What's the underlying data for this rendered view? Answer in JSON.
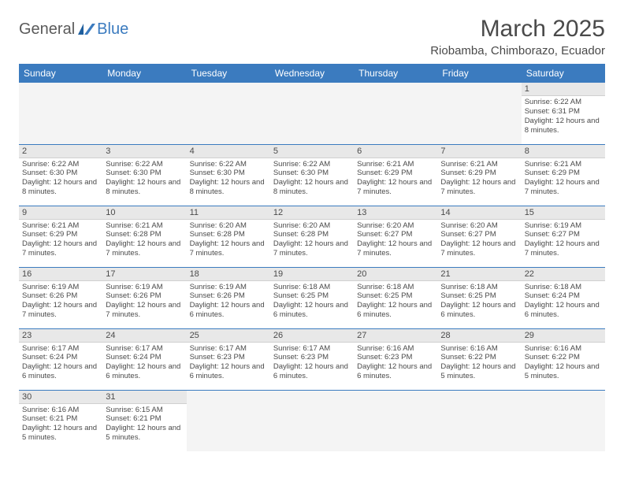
{
  "logo": {
    "part1": "General",
    "part2": "Blue"
  },
  "title": "March 2025",
  "location": "Riobamba, Chimborazo, Ecuador",
  "colors": {
    "header_bg": "#3b7bbf",
    "header_fg": "#ffffff",
    "daynum_bg": "#e8e8e8",
    "border": "#3b7bbf",
    "text": "#4a4a4a"
  },
  "day_names": [
    "Sunday",
    "Monday",
    "Tuesday",
    "Wednesday",
    "Thursday",
    "Friday",
    "Saturday"
  ],
  "weeks": [
    [
      null,
      null,
      null,
      null,
      null,
      null,
      {
        "n": "1",
        "sr": "6:22 AM",
        "ss": "6:31 PM",
        "dl": "12 hours and 8 minutes."
      }
    ],
    [
      {
        "n": "2",
        "sr": "6:22 AM",
        "ss": "6:30 PM",
        "dl": "12 hours and 8 minutes."
      },
      {
        "n": "3",
        "sr": "6:22 AM",
        "ss": "6:30 PM",
        "dl": "12 hours and 8 minutes."
      },
      {
        "n": "4",
        "sr": "6:22 AM",
        "ss": "6:30 PM",
        "dl": "12 hours and 8 minutes."
      },
      {
        "n": "5",
        "sr": "6:22 AM",
        "ss": "6:30 PM",
        "dl": "12 hours and 8 minutes."
      },
      {
        "n": "6",
        "sr": "6:21 AM",
        "ss": "6:29 PM",
        "dl": "12 hours and 7 minutes."
      },
      {
        "n": "7",
        "sr": "6:21 AM",
        "ss": "6:29 PM",
        "dl": "12 hours and 7 minutes."
      },
      {
        "n": "8",
        "sr": "6:21 AM",
        "ss": "6:29 PM",
        "dl": "12 hours and 7 minutes."
      }
    ],
    [
      {
        "n": "9",
        "sr": "6:21 AM",
        "ss": "6:29 PM",
        "dl": "12 hours and 7 minutes."
      },
      {
        "n": "10",
        "sr": "6:21 AM",
        "ss": "6:28 PM",
        "dl": "12 hours and 7 minutes."
      },
      {
        "n": "11",
        "sr": "6:20 AM",
        "ss": "6:28 PM",
        "dl": "12 hours and 7 minutes."
      },
      {
        "n": "12",
        "sr": "6:20 AM",
        "ss": "6:28 PM",
        "dl": "12 hours and 7 minutes."
      },
      {
        "n": "13",
        "sr": "6:20 AM",
        "ss": "6:27 PM",
        "dl": "12 hours and 7 minutes."
      },
      {
        "n": "14",
        "sr": "6:20 AM",
        "ss": "6:27 PM",
        "dl": "12 hours and 7 minutes."
      },
      {
        "n": "15",
        "sr": "6:19 AM",
        "ss": "6:27 PM",
        "dl": "12 hours and 7 minutes."
      }
    ],
    [
      {
        "n": "16",
        "sr": "6:19 AM",
        "ss": "6:26 PM",
        "dl": "12 hours and 7 minutes."
      },
      {
        "n": "17",
        "sr": "6:19 AM",
        "ss": "6:26 PM",
        "dl": "12 hours and 7 minutes."
      },
      {
        "n": "18",
        "sr": "6:19 AM",
        "ss": "6:26 PM",
        "dl": "12 hours and 6 minutes."
      },
      {
        "n": "19",
        "sr": "6:18 AM",
        "ss": "6:25 PM",
        "dl": "12 hours and 6 minutes."
      },
      {
        "n": "20",
        "sr": "6:18 AM",
        "ss": "6:25 PM",
        "dl": "12 hours and 6 minutes."
      },
      {
        "n": "21",
        "sr": "6:18 AM",
        "ss": "6:25 PM",
        "dl": "12 hours and 6 minutes."
      },
      {
        "n": "22",
        "sr": "6:18 AM",
        "ss": "6:24 PM",
        "dl": "12 hours and 6 minutes."
      }
    ],
    [
      {
        "n": "23",
        "sr": "6:17 AM",
        "ss": "6:24 PM",
        "dl": "12 hours and 6 minutes."
      },
      {
        "n": "24",
        "sr": "6:17 AM",
        "ss": "6:24 PM",
        "dl": "12 hours and 6 minutes."
      },
      {
        "n": "25",
        "sr": "6:17 AM",
        "ss": "6:23 PM",
        "dl": "12 hours and 6 minutes."
      },
      {
        "n": "26",
        "sr": "6:17 AM",
        "ss": "6:23 PM",
        "dl": "12 hours and 6 minutes."
      },
      {
        "n": "27",
        "sr": "6:16 AM",
        "ss": "6:23 PM",
        "dl": "12 hours and 6 minutes."
      },
      {
        "n": "28",
        "sr": "6:16 AM",
        "ss": "6:22 PM",
        "dl": "12 hours and 5 minutes."
      },
      {
        "n": "29",
        "sr": "6:16 AM",
        "ss": "6:22 PM",
        "dl": "12 hours and 5 minutes."
      }
    ],
    [
      {
        "n": "30",
        "sr": "6:16 AM",
        "ss": "6:21 PM",
        "dl": "12 hours and 5 minutes."
      },
      {
        "n": "31",
        "sr": "6:15 AM",
        "ss": "6:21 PM",
        "dl": "12 hours and 5 minutes."
      },
      null,
      null,
      null,
      null,
      null
    ]
  ],
  "labels": {
    "sunrise": "Sunrise:",
    "sunset": "Sunset:",
    "daylight": "Daylight:"
  }
}
